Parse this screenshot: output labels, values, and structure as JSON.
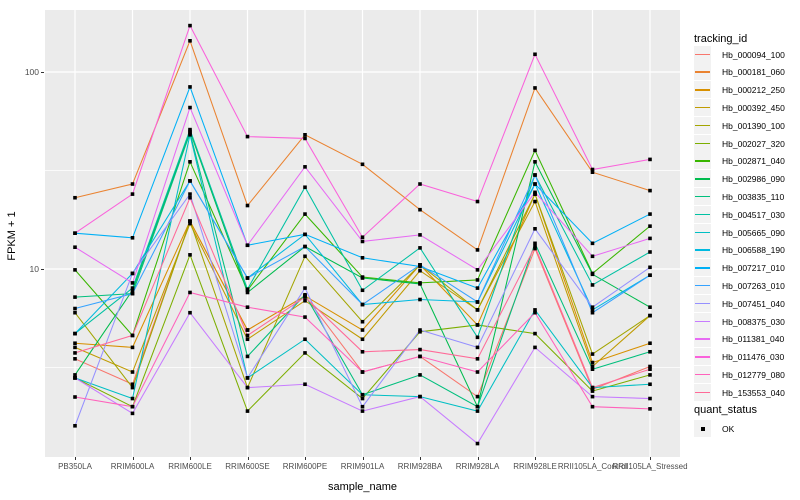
{
  "figure": {
    "xlabel": "sample_name",
    "ylabel": "FPKM + 1"
  },
  "legend": {
    "tracking_title": "tracking_id",
    "quant_title": "quant_status",
    "quant_items": [
      {
        "label": "OK",
        "shape": "black-square"
      }
    ]
  },
  "colors": {
    "panel_bg": "#EBEBEB",
    "grid": "#FFFFFF",
    "legend_key_bg": "#F2F2F2",
    "axis_text": "#4D4D4D",
    "point": "#000000"
  },
  "chart_data": {
    "type": "line",
    "title": "",
    "xlabel": "sample_name",
    "ylabel": "FPKM + 1",
    "y_scale": "log10",
    "y_tick_labels": [
      "100",
      "10"
    ],
    "y_ticks": [
      100,
      10
    ],
    "y_minor_gridlines": [
      31.62,
      3.162
    ],
    "ylim": [
      1.2,
      220
    ],
    "grid": true,
    "legend_position": "right",
    "point_style": "small black square (quant_status = OK)",
    "categories": [
      "PB350LA",
      "RRIM600LA",
      "RRIM600LE",
      "RRIM600SE",
      "RRIM600PE",
      "RRIM901LA",
      "RRIM928BA",
      "RRIM928LA",
      "RRIM928LE",
      "RRII105LA_Control",
      "RRII105LA_Stressed"
    ],
    "series": [
      {
        "name": "Hb_000094_100",
        "color": "#F8766D",
        "values": [
          3.5,
          2.6,
          17.5,
          4.9,
          7.3,
          3.0,
          3.6,
          2.25,
          12.7,
          2.45,
          3.2
        ]
      },
      {
        "name": "Hb_000181_060",
        "color": "#EA8331",
        "values": [
          23,
          27,
          144,
          21,
          48,
          34,
          20,
          12.5,
          83,
          31,
          25
        ]
      },
      {
        "name": "Hb_000212_250",
        "color": "#D89000",
        "values": [
          4.2,
          4.0,
          17.5,
          4.9,
          7.3,
          4.9,
          10.5,
          5.2,
          24,
          3.35,
          4.2
        ]
      },
      {
        "name": "Hb_000392_450",
        "color": "#C09B00",
        "values": [
          4.0,
          3.0,
          17.0,
          4.4,
          6.9,
          4.4,
          9.8,
          6.2,
          22,
          3.2,
          5.8
        ]
      },
      {
        "name": "Hb_001390_100",
        "color": "#A3A500",
        "values": [
          6.0,
          2.5,
          17.5,
          2.5,
          11.6,
          5.4,
          10.5,
          6.2,
          24,
          3.7,
          5.8
        ]
      },
      {
        "name": "Hb_002027_320",
        "color": "#7CAE00",
        "values": [
          2.8,
          2.0,
          11.8,
          1.9,
          3.75,
          2.2,
          4.8,
          5.2,
          4.7,
          2.4,
          2.9
        ]
      },
      {
        "name": "Hb_002871_040",
        "color": "#39B600",
        "values": [
          9.9,
          4.6,
          35,
          7.8,
          19,
          9.1,
          8.5,
          8.8,
          40,
          9.5,
          16.5
        ]
      },
      {
        "name": "Hb_002986_090",
        "color": "#00BB4E",
        "values": [
          2.9,
          7.8,
          50,
          7.6,
          13,
          9.0,
          8.4,
          2.0,
          35,
          9.4,
          6.4
        ]
      },
      {
        "name": "Hb_003835_110",
        "color": "#00BF7D",
        "values": [
          7.2,
          7.5,
          49,
          3.6,
          7.4,
          2.3,
          2.9,
          2.0,
          13.5,
          3.1,
          3.8
        ]
      },
      {
        "name": "Hb_004517_030",
        "color": "#00C1A3",
        "values": [
          4.7,
          8.0,
          51,
          7.9,
          26,
          7.8,
          12.8,
          4.5,
          30,
          8.3,
          12.2
        ]
      },
      {
        "name": "Hb_005665_090",
        "color": "#00BFC4",
        "values": [
          2.8,
          2.2,
          48,
          2.8,
          4.4,
          2.3,
          2.25,
          1.9,
          6.2,
          2.5,
          2.6
        ]
      },
      {
        "name": "Hb_006588_190",
        "color": "#00BAE0",
        "values": [
          4.7,
          9.5,
          28,
          9.0,
          15,
          6.6,
          7.0,
          6.8,
          27,
          6.2,
          9.3
        ]
      },
      {
        "name": "Hb_007217_010",
        "color": "#00B0F6",
        "values": [
          15.2,
          14.4,
          84,
          13.2,
          15,
          11.4,
          10.3,
          8.0,
          27,
          13.5,
          19
        ]
      },
      {
        "name": "Hb_007263_010",
        "color": "#35A2FF",
        "values": [
          6.3,
          7.5,
          28,
          9.0,
          13,
          6.6,
          10.5,
          6.8,
          30,
          6.0,
          9.3
        ]
      },
      {
        "name": "Hb_007451_040",
        "color": "#9590FF",
        "values": [
          1.6,
          9.5,
          24,
          2.8,
          8.0,
          2.0,
          4.9,
          4.0,
          16,
          6.4,
          10.2
        ]
      },
      {
        "name": "Hb_008375_030",
        "color": "#C77CFF",
        "values": [
          2.8,
          1.85,
          6.0,
          2.5,
          2.6,
          1.9,
          2.25,
          1.3,
          4.0,
          2.25,
          2.2
        ]
      },
      {
        "name": "Hb_011381_040",
        "color": "#E76BF3",
        "values": [
          12.9,
          8.5,
          66,
          13.2,
          33,
          13.8,
          14.9,
          9.9,
          24.5,
          11.6,
          14.3
        ]
      },
      {
        "name": "Hb_011476_030",
        "color": "#FA62DB",
        "values": [
          15.2,
          24,
          172,
          47,
          46,
          14.5,
          27,
          22,
          123,
          32,
          36
        ]
      },
      {
        "name": "Hb_012779_080",
        "color": "#FF62BC",
        "values": [
          2.24,
          2.0,
          7.6,
          6.4,
          5.7,
          3.0,
          3.6,
          3.0,
          6.0,
          2.0,
          1.95
        ]
      },
      {
        "name": "Hb_153553_040",
        "color": "#FF6A98",
        "values": [
          3.75,
          4.6,
          23,
          4.6,
          7.2,
          3.8,
          3.9,
          3.5,
          13,
          2.5,
          3.1
        ]
      }
    ]
  }
}
